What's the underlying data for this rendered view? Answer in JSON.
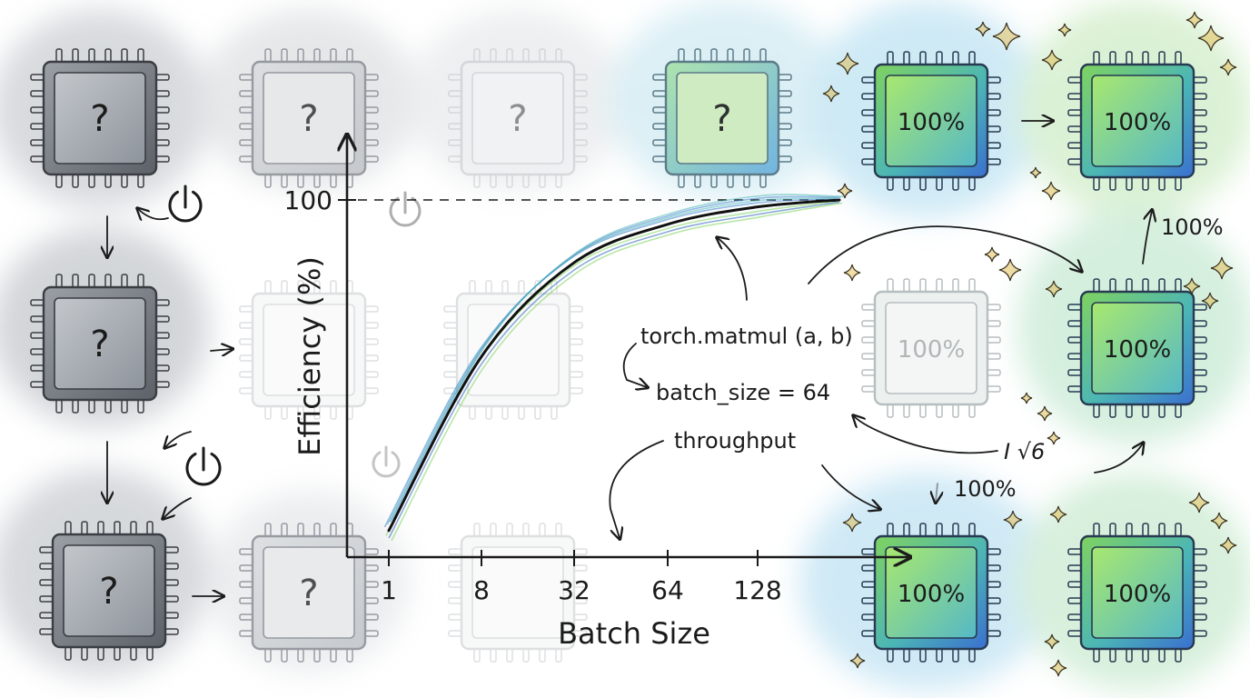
{
  "chart_data": {
    "type": "line",
    "xlabel": "Batch Size",
    "ylabel": "Efficiency (%)",
    "x_ticks": [
      "1",
      "8",
      "32",
      "64",
      "128"
    ],
    "y_ticks": [
      "100"
    ],
    "series": [
      {
        "x": [
          1,
          8,
          32,
          64,
          128,
          256
        ],
        "y": [
          5,
          55,
          82,
          93,
          98,
          100
        ]
      }
    ]
  },
  "annotations": {
    "code": "torch.matmul (a, b)",
    "batch": "batch_size = 64",
    "throughput": "throughput",
    "scribble": "I  √6"
  },
  "chips": {
    "unknown_label": "?",
    "full_label": "100%",
    "float_labels": [
      "100%",
      "100%"
    ]
  },
  "colors": {
    "idle_gray": "#8a8f96",
    "active_blue": "#3f7fd0",
    "active_green": "#7fd35f",
    "sparkle_gold": "#e0b43a"
  },
  "icons": [
    "power-icon",
    "sparkle-icon",
    "chip-icon",
    "arrow-icon"
  ]
}
